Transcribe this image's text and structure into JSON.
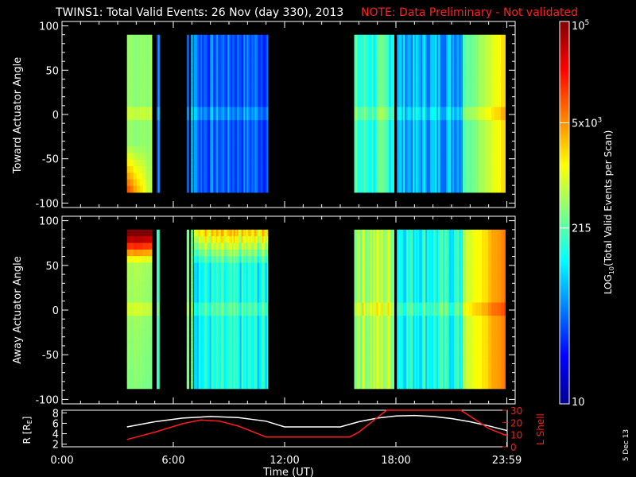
{
  "title": {
    "main": "TWINS1: Total Valid Events: 26 Nov (day 330), 2013",
    "note": "NOTE: Data Preliminary - Not validated"
  },
  "colors": {
    "background": "#000000",
    "foreground": "#ffffff",
    "note": "#ff2020",
    "lshell": "#ff1a1a",
    "radius": "#ffffff"
  },
  "side_stamp": "5 Dec 13",
  "chart_data": [
    {
      "type": "heatmap",
      "panel": "toward",
      "ylabel": "Toward Actuator Angle",
      "ylim": [
        -105,
        105
      ],
      "yticks": [
        100,
        50,
        0,
        -50,
        -100
      ],
      "xlim": [
        0,
        24
      ],
      "angle_range": [
        -88,
        90
      ],
      "segments": [
        {
          "x0": 3.5,
          "x1": 4.85,
          "level": 0.52,
          "gradient": "left_bright_bottom"
        },
        {
          "x0": 5.1,
          "x1": 5.18,
          "level": 0.18
        },
        {
          "x0": 5.18,
          "x1": 5.25,
          "level": 0.3
        },
        {
          "x0": 6.72,
          "x1": 6.85,
          "level": 0.22
        },
        {
          "x0": 6.95,
          "x1": 7.05,
          "level": 0.3
        },
        {
          "x0": 7.1,
          "x1": 7.3,
          "level": 0.28
        },
        {
          "x0": 7.3,
          "x1": 11.1,
          "level": 0.22,
          "striped": true
        },
        {
          "x0": 15.75,
          "x1": 17.9,
          "level": 0.42,
          "striped": true
        },
        {
          "x0": 18.05,
          "x1": 21.6,
          "level": 0.3,
          "striped": true
        },
        {
          "x0": 21.6,
          "x1": 23.9,
          "level": 0.45,
          "gradient": "right_bright"
        }
      ]
    },
    {
      "type": "heatmap",
      "panel": "away",
      "ylabel": "Away Actuator Angle",
      "ylim": [
        -105,
        105
      ],
      "yticks": [
        100,
        50,
        0,
        -50,
        -100
      ],
      "xlim": [
        0,
        24
      ],
      "angle_range": [
        -88,
        90
      ],
      "segments": [
        {
          "x0": 3.5,
          "x1": 4.85,
          "level": 0.55,
          "gradient": "top_hot"
        },
        {
          "x0": 5.1,
          "x1": 5.25,
          "level": 0.42
        },
        {
          "x0": 6.72,
          "x1": 6.85,
          "level": 0.5
        },
        {
          "x0": 6.95,
          "x1": 7.05,
          "level": 0.5
        },
        {
          "x0": 7.1,
          "x1": 11.1,
          "level": 0.38,
          "striped": true,
          "gradient": "top_bright"
        },
        {
          "x0": 15.75,
          "x1": 17.9,
          "level": 0.55,
          "striped": true
        },
        {
          "x0": 18.05,
          "x1": 21.6,
          "level": 0.4,
          "striped": true
        },
        {
          "x0": 21.6,
          "x1": 23.9,
          "level": 0.55,
          "gradient": "right_bright"
        }
      ]
    },
    {
      "type": "line",
      "panel": "orbit",
      "xlabel": "Time (UT)",
      "xticks": [
        "0:00",
        "6:00",
        "12:00",
        "18:00",
        "23:59"
      ],
      "xtick_values": [
        0,
        6,
        12,
        18,
        23.98
      ],
      "xlim": [
        0,
        24
      ],
      "left_axis": {
        "label": "R [RE]",
        "ylim": [
          1.5,
          8.5
        ],
        "yticks": [
          8,
          6,
          4,
          2
        ]
      },
      "right_axis": {
        "label": "L Shell",
        "ylim": [
          0,
          30
        ],
        "yticks": [
          30,
          20,
          10,
          0
        ]
      },
      "series": [
        {
          "axis": "left",
          "x": [
            3.5,
            5.0,
            6.5,
            8.0,
            9.5,
            11.0,
            12.0,
            13.5,
            15.0,
            16.0,
            17.0,
            18.0,
            19.0,
            20.0,
            21.0,
            22.0,
            23.0,
            24.0
          ],
          "y": [
            5.3,
            6.3,
            7.0,
            7.3,
            7.1,
            6.4,
            5.3,
            5.3,
            5.3,
            6.3,
            7.0,
            7.4,
            7.5,
            7.3,
            6.9,
            6.3,
            5.5,
            4.6
          ]
        },
        {
          "axis": "right",
          "x": [
            3.5,
            5.0,
            6.5,
            7.5,
            8.5,
            9.5,
            10.5,
            11.0,
            12.0,
            14.0,
            15.5,
            16.0,
            17.0,
            17.5,
            21.5,
            22.5,
            23.0,
            24.0
          ],
          "y": [
            6,
            12,
            19,
            22,
            21,
            17,
            11,
            8,
            8,
            8,
            8,
            12,
            24,
            30,
            30,
            20,
            15,
            9
          ]
        }
      ]
    },
    {
      "type": "colorbar",
      "label": "LOG10(Total Valid Events per Scan)",
      "ticks": [
        {
          "label": "10^5",
          "level": 1.0
        },
        {
          "label": "5x10^3",
          "level": 0.735
        },
        {
          "label": "215",
          "level": 0.46
        },
        {
          "label": "10",
          "level": 0.0
        }
      ]
    }
  ]
}
